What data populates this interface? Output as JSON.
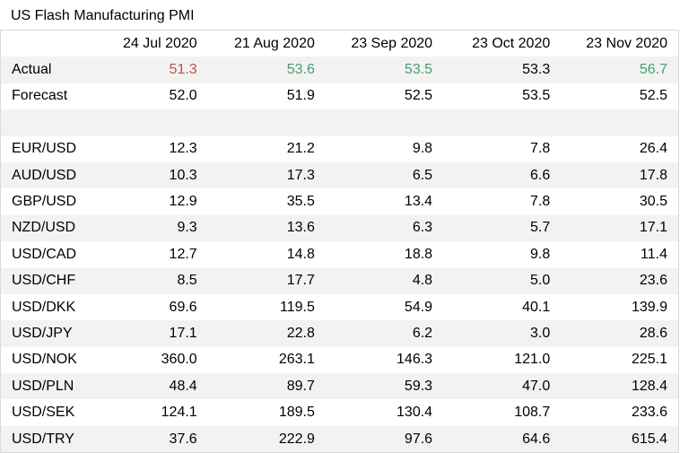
{
  "title": "US Flash Manufacturing PMI",
  "table": {
    "header": [
      "24 Jul 2020",
      "21 Aug 2020",
      "23 Sep 2020",
      "23 Oct 2020",
      "23 Nov 2020"
    ],
    "rows": [
      {
        "label": "Actual",
        "values": [
          "51.3",
          "53.6",
          "53.5",
          "53.3",
          "56.7"
        ],
        "colors": [
          "#c0504d",
          "#3ea36e",
          "#3ea36e",
          "#000000",
          "#3ea36e"
        ]
      },
      {
        "label": "Forecast",
        "values": [
          "52.0",
          "51.9",
          "52.5",
          "53.5",
          "52.5"
        ]
      },
      {
        "label": "EUR/USD",
        "values": [
          "12.3",
          "21.2",
          "9.8",
          "7.8",
          "26.4"
        ]
      },
      {
        "label": "AUD/USD",
        "values": [
          "10.3",
          "17.3",
          "6.5",
          "6.6",
          "17.8"
        ]
      },
      {
        "label": "GBP/USD",
        "values": [
          "12.9",
          "35.5",
          "13.4",
          "7.8",
          "30.5"
        ]
      },
      {
        "label": "NZD/USD",
        "values": [
          "9.3",
          "13.6",
          "6.3",
          "5.7",
          "17.1"
        ]
      },
      {
        "label": "USD/CAD",
        "values": [
          "12.7",
          "14.8",
          "18.8",
          "9.8",
          "11.4"
        ]
      },
      {
        "label": "USD/CHF",
        "values": [
          "8.5",
          "17.7",
          "4.8",
          "5.0",
          "23.6"
        ]
      },
      {
        "label": "USD/DKK",
        "values": [
          "69.6",
          "119.5",
          "54.9",
          "40.1",
          "139.9"
        ]
      },
      {
        "label": "USD/JPY",
        "values": [
          "17.1",
          "22.8",
          "6.2",
          "3.0",
          "28.6"
        ]
      },
      {
        "label": "USD/NOK",
        "values": [
          "360.0",
          "263.1",
          "146.3",
          "121.0",
          "225.1"
        ]
      },
      {
        "label": "USD/PLN",
        "values": [
          "48.4",
          "89.7",
          "59.3",
          "47.0",
          "128.4"
        ]
      },
      {
        "label": "USD/SEK",
        "values": [
          "124.1",
          "189.5",
          "130.4",
          "108.7",
          "233.6"
        ]
      },
      {
        "label": "USD/TRY",
        "values": [
          "37.6",
          "222.9",
          "97.6",
          "64.6",
          "615.4"
        ]
      }
    ]
  }
}
